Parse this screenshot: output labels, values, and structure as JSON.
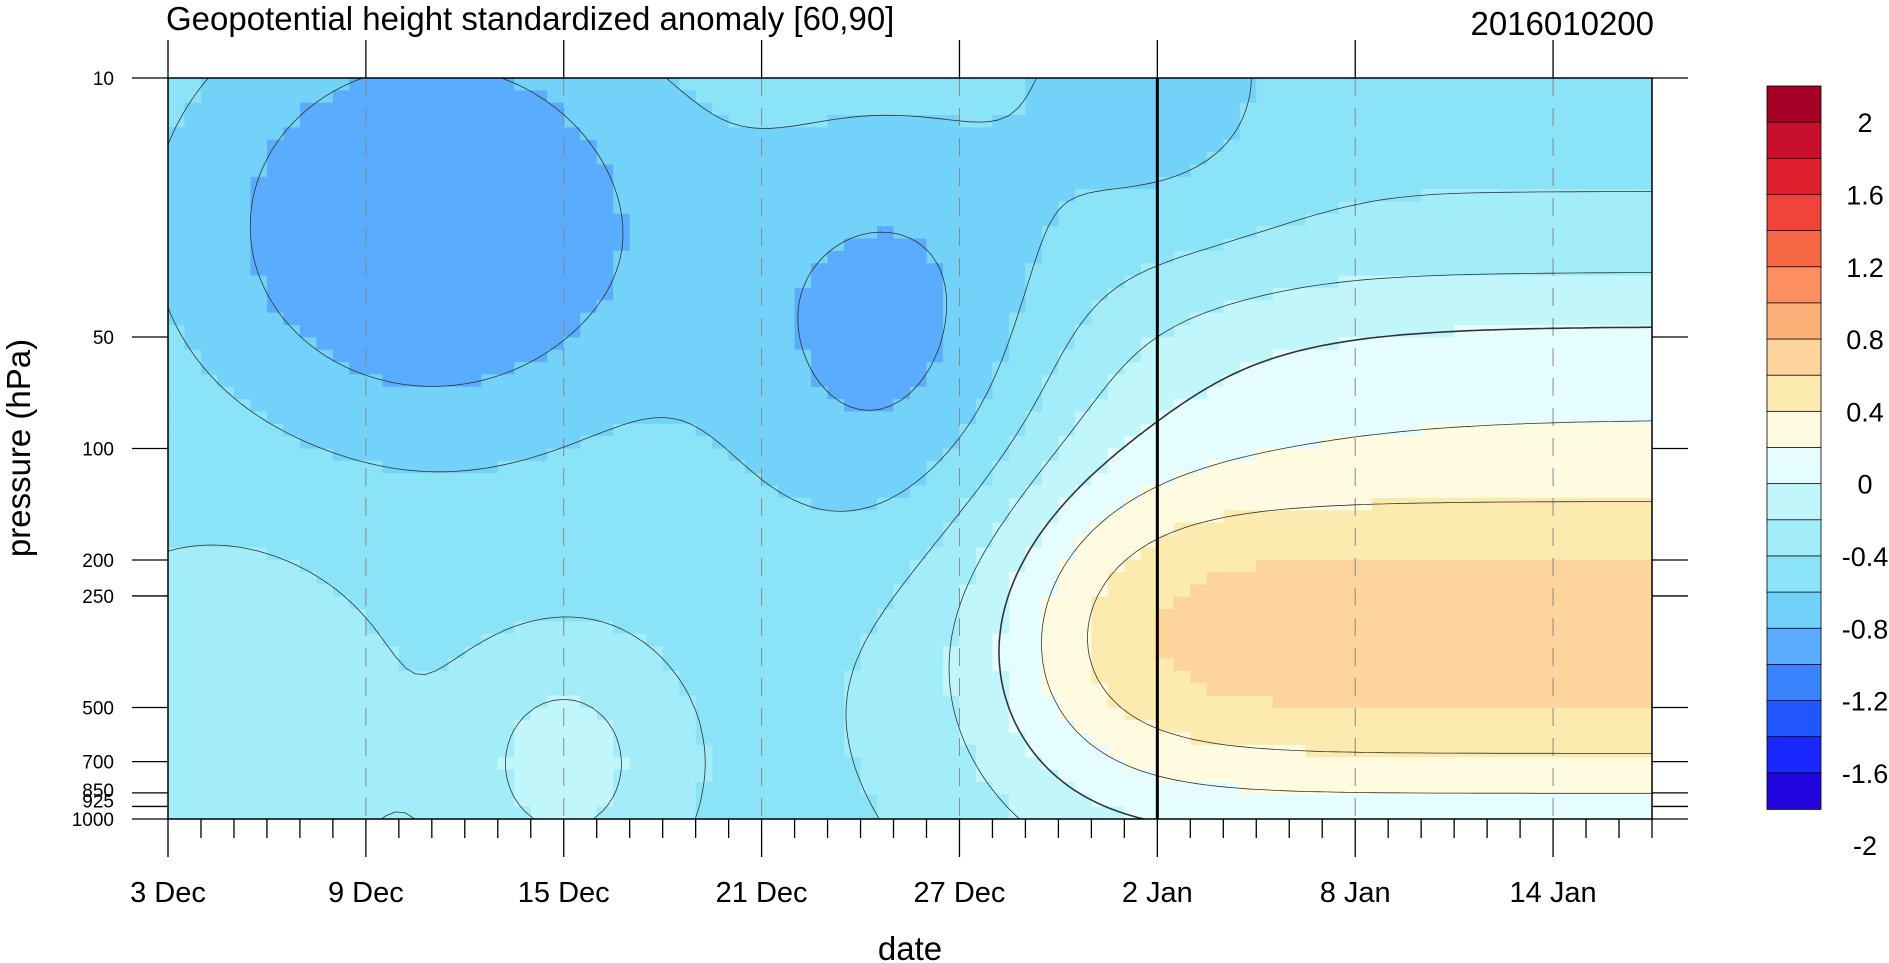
{
  "chart_data": {
    "type": "heatmap",
    "title": "Geopotential height standardized anomaly [60,90]",
    "timestamp": "2016010200",
    "xlabel": "date",
    "ylabel": "pressure (hPa)",
    "x_tick_labels": [
      "3 Dec",
      "9 Dec",
      "15 Dec",
      "21 Dec",
      "27 Dec",
      "2 Jan",
      "8 Jan",
      "14 Jan"
    ],
    "x_day_range": [
      0,
      45
    ],
    "x_tick_days": [
      0,
      6,
      12,
      18,
      24,
      30,
      36,
      42
    ],
    "y_tick_labels": [
      "10",
      "50",
      "100",
      "200",
      "250",
      "500",
      "700",
      "850",
      "925",
      "1000"
    ],
    "y_tick_values": [
      10,
      50,
      100,
      200,
      250,
      500,
      700,
      850,
      925,
      1000
    ],
    "y_scale": "log",
    "y_range": [
      10,
      1000
    ],
    "current_day_line": 30,
    "colorbar": {
      "labels": [
        "2",
        "1.6",
        "1.2",
        "0.8",
        "0.4",
        "0",
        "-0.4",
        "-0.8",
        "-1.2",
        "-1.6",
        "-2"
      ],
      "colors": [
        "#a50026",
        "#c8102e",
        "#de1f2e",
        "#f0433a",
        "#f76846",
        "#fc8e5f",
        "#fdb178",
        "#fcd49c",
        "#fdeaaf",
        "#fffbe0",
        "#e6fdff",
        "#c1f7fb",
        "#a3edfa",
        "#8be3f8",
        "#72d2f9",
        "#5aacff",
        "#3a84ff",
        "#2156ff",
        "#1a28ff",
        "#2305e0"
      ],
      "orientation": "vertical",
      "placement": "right",
      "range": [
        -2.2,
        2.2
      ]
    },
    "contour_levels": [
      -1.2,
      -0.8,
      -0.6,
      -0.4,
      -0.2,
      0,
      0.2,
      0.4
    ],
    "fill_colors": {
      "-1.2": "#5aacff",
      "-0.8": "#72d2f9",
      "-0.6": "#8be3f8",
      "-0.4": "#a3edfa",
      "-0.2": "#c1f7fb",
      "0": "#e6fdff",
      "0.2": "#fffbe0",
      "0.4": "#fdeaaf",
      "0.6": "#fcd49c"
    },
    "grid": "vertical-dashed"
  }
}
